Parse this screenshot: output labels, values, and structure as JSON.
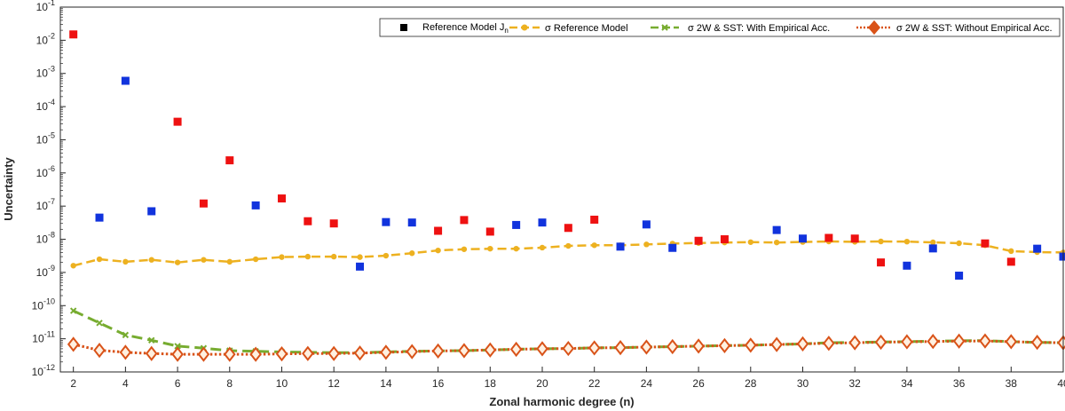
{
  "chart_data": {
    "type": "scatter",
    "title": "",
    "xlabel": "Zonal harmonic degree (n)",
    "ylabel": "Uncertainty",
    "xlim": [
      1.5,
      40
    ],
    "ylim_exp": [
      -12,
      -1
    ],
    "yscale": "log",
    "grid": false,
    "legend_position": "top-right",
    "x_ticks": [
      2,
      4,
      6,
      8,
      10,
      12,
      14,
      16,
      18,
      20,
      22,
      24,
      26,
      28,
      30,
      32,
      34,
      36,
      38,
      40
    ],
    "y_tick_exps": [
      -12,
      -11,
      -10,
      -9,
      -8,
      -7,
      -6,
      -5,
      -4,
      -3,
      -2,
      -1
    ],
    "y_tick_base": "10",
    "legend": {
      "ref_label_main": "Reference Model J",
      "ref_label_sub": "n",
      "sigma_ref_label": "σ Reference Model",
      "with_emp_label": "σ 2W & SST: With Empirical Acc.",
      "without_emp_label": "σ 2W & SST: Without Empirical Acc."
    },
    "colors": {
      "positive": "#ee1111",
      "negative": "#1133dd",
      "legend_marker": "#000000",
      "sigma_ref": "#edb120",
      "with_emp": "#77ac30",
      "without_emp": "#d95319",
      "without_emp_fill": "#fff0e0"
    },
    "reference_model": {
      "name": "Reference Model Jn",
      "x": [
        2,
        3,
        4,
        5,
        6,
        7,
        8,
        9,
        10,
        11,
        12,
        13,
        14,
        15,
        16,
        17,
        18,
        19,
        20,
        21,
        22,
        23,
        24,
        25,
        26,
        27,
        29,
        30,
        31,
        32,
        33,
        34,
        35,
        36,
        37,
        38,
        39,
        40
      ],
      "y": [
        0.015,
        4.5e-08,
        0.0006,
        7e-08,
        3.5e-05,
        1.2e-07,
        2.4e-06,
        1.05e-07,
        1.7e-07,
        3.5e-08,
        3e-08,
        1.5e-09,
        3.3e-08,
        3.2e-08,
        1.8e-08,
        3.8e-08,
        1.7e-08,
        2.7e-08,
        3.2e-08,
        2.2e-08,
        3.9e-08,
        6e-09,
        2.8e-08,
        5.5e-09,
        9e-09,
        1e-08,
        1.9e-08,
        1.05e-08,
        1.1e-08,
        1.05e-08,
        2e-09,
        1.6e-09,
        5.3e-09,
        8e-10,
        7.5e-09,
        2.1e-09,
        5.2e-09,
        3e-09
      ],
      "sign": [
        "pos",
        "neg",
        "neg",
        "neg",
        "pos",
        "pos",
        "pos",
        "neg",
        "pos",
        "pos",
        "pos",
        "neg",
        "neg",
        "neg",
        "pos",
        "pos",
        "pos",
        "neg",
        "neg",
        "pos",
        "pos",
        "neg",
        "neg",
        "neg",
        "pos",
        "pos",
        "neg",
        "neg",
        "pos",
        "pos",
        "pos",
        "neg",
        "neg",
        "neg",
        "pos",
        "pos",
        "neg",
        "neg"
      ]
    },
    "series": [
      {
        "name": "σ Reference Model",
        "x": [
          2,
          3,
          4,
          5,
          6,
          7,
          8,
          9,
          10,
          11,
          12,
          13,
          14,
          15,
          16,
          17,
          18,
          19,
          20,
          21,
          22,
          23,
          24,
          25,
          26,
          27,
          28,
          29,
          30,
          31,
          32,
          33,
          34,
          35,
          36,
          37,
          38,
          39,
          40
        ],
        "y": [
          1.6e-09,
          2.5e-09,
          2.1e-09,
          2.4e-09,
          2e-09,
          2.4e-09,
          2.1e-09,
          2.5e-09,
          2.9e-09,
          3e-09,
          3e-09,
          2.9e-09,
          3.2e-09,
          3.8e-09,
          4.6e-09,
          5e-09,
          5.2e-09,
          5.2e-09,
          5.6e-09,
          6.3e-09,
          6.6e-09,
          6.6e-09,
          7e-09,
          7.4e-09,
          7.7e-09,
          8e-09,
          8.2e-09,
          8e-09,
          8.3e-09,
          8.6e-09,
          8.4e-09,
          8.6e-09,
          8.5e-09,
          8.1e-09,
          7.6e-09,
          6.6e-09,
          4.4e-09,
          4.1e-09,
          4e-09
        ]
      },
      {
        "name": "σ 2W & SST: With Empirical Acc.",
        "x": [
          2,
          3,
          4,
          5,
          6,
          7,
          8,
          9,
          10,
          11,
          12,
          13,
          14,
          15,
          16,
          17,
          18,
          19,
          20,
          21,
          22,
          23,
          24,
          25,
          26,
          27,
          28,
          29,
          30,
          31,
          32,
          33,
          34,
          35,
          36,
          37,
          38,
          39,
          40
        ],
        "y": [
          7e-11,
          3e-11,
          1.3e-11,
          9e-12,
          6e-12,
          5.2e-12,
          4.4e-12,
          4.2e-12,
          4e-12,
          3.9e-12,
          3.8e-12,
          3.8e-12,
          4e-12,
          4.2e-12,
          4.3e-12,
          4.4e-12,
          4.6e-12,
          4.8e-12,
          5e-12,
          5.1e-12,
          5.3e-12,
          5.4e-12,
          5.6e-12,
          5.8e-12,
          6e-12,
          6.2e-12,
          6.4e-12,
          6.7e-12,
          7e-12,
          7.6e-12,
          7.8e-12,
          8e-12,
          8.2e-12,
          8.5e-12,
          8.7e-12,
          8.8e-12,
          8.2e-12,
          7.8e-12,
          7.6e-12
        ]
      },
      {
        "name": "σ 2W & SST: Without Empirical Acc.",
        "x": [
          2,
          3,
          4,
          5,
          6,
          7,
          8,
          9,
          10,
          11,
          12,
          13,
          14,
          15,
          16,
          17,
          18,
          19,
          20,
          21,
          22,
          23,
          24,
          25,
          26,
          27,
          28,
          29,
          30,
          31,
          32,
          33,
          34,
          35,
          36,
          37,
          38,
          39,
          40
        ],
        "y": [
          6.8e-12,
          4.5e-12,
          3.9e-12,
          3.6e-12,
          3.4e-12,
          3.4e-12,
          3.4e-12,
          3.4e-12,
          3.5e-12,
          3.6e-12,
          3.6e-12,
          3.7e-12,
          3.9e-12,
          4.1e-12,
          4.3e-12,
          4.4e-12,
          4.6e-12,
          4.8e-12,
          5e-12,
          5.1e-12,
          5.3e-12,
          5.4e-12,
          5.6e-12,
          5.8e-12,
          6e-12,
          6.2e-12,
          6.4e-12,
          6.7e-12,
          7e-12,
          7.3e-12,
          7.6e-12,
          7.9e-12,
          8.1e-12,
          8.3e-12,
          8.5e-12,
          8.6e-12,
          8.2e-12,
          7.8e-12,
          7.6e-12
        ]
      }
    ]
  }
}
